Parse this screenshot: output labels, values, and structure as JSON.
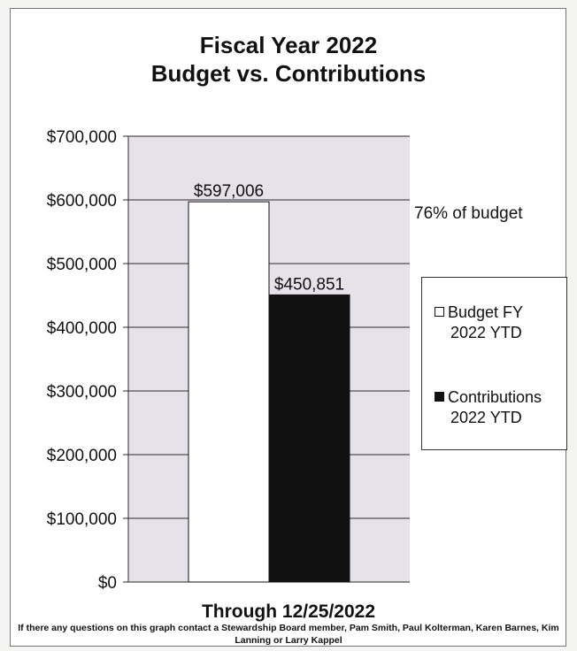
{
  "chart_data": {
    "type": "bar",
    "title": "Fiscal Year 2022",
    "subtitle": "Budget vs. Contributions",
    "categories": [
      "Budget FY 2022 YTD",
      "Contributions 2022 YTD"
    ],
    "values": [
      597006,
      450851
    ],
    "data_labels": [
      "$597,006",
      "$450,851"
    ],
    "bar_colors": [
      "#ffffff",
      "#111111"
    ],
    "plot_background": "#e7e1ea",
    "ylim": [
      0,
      700000
    ],
    "yticks": [
      0,
      100000,
      200000,
      300000,
      400000,
      500000,
      600000,
      700000
    ],
    "ytick_labels": [
      "$0",
      "$100,000",
      "$200,000",
      "$300,000",
      "$400,000",
      "$500,000",
      "$600,000",
      "$700,000"
    ],
    "grid": true,
    "legend_position": "right",
    "legend": [
      {
        "line1": "Budget FY",
        "line2": "2022 YTD",
        "color": "#ffffff"
      },
      {
        "line1": "Contributions",
        "line2": "2022 YTD",
        "color": "#111111"
      }
    ],
    "annotation": "76% of budget",
    "xlabel": "Through 12/25/2022",
    "footnote": "If there any questions on this graph contact a Stewardship Board member, Pam Smith, Paul Kolterman, Karen Barnes,  Kim Lanning or Larry Kappel"
  }
}
